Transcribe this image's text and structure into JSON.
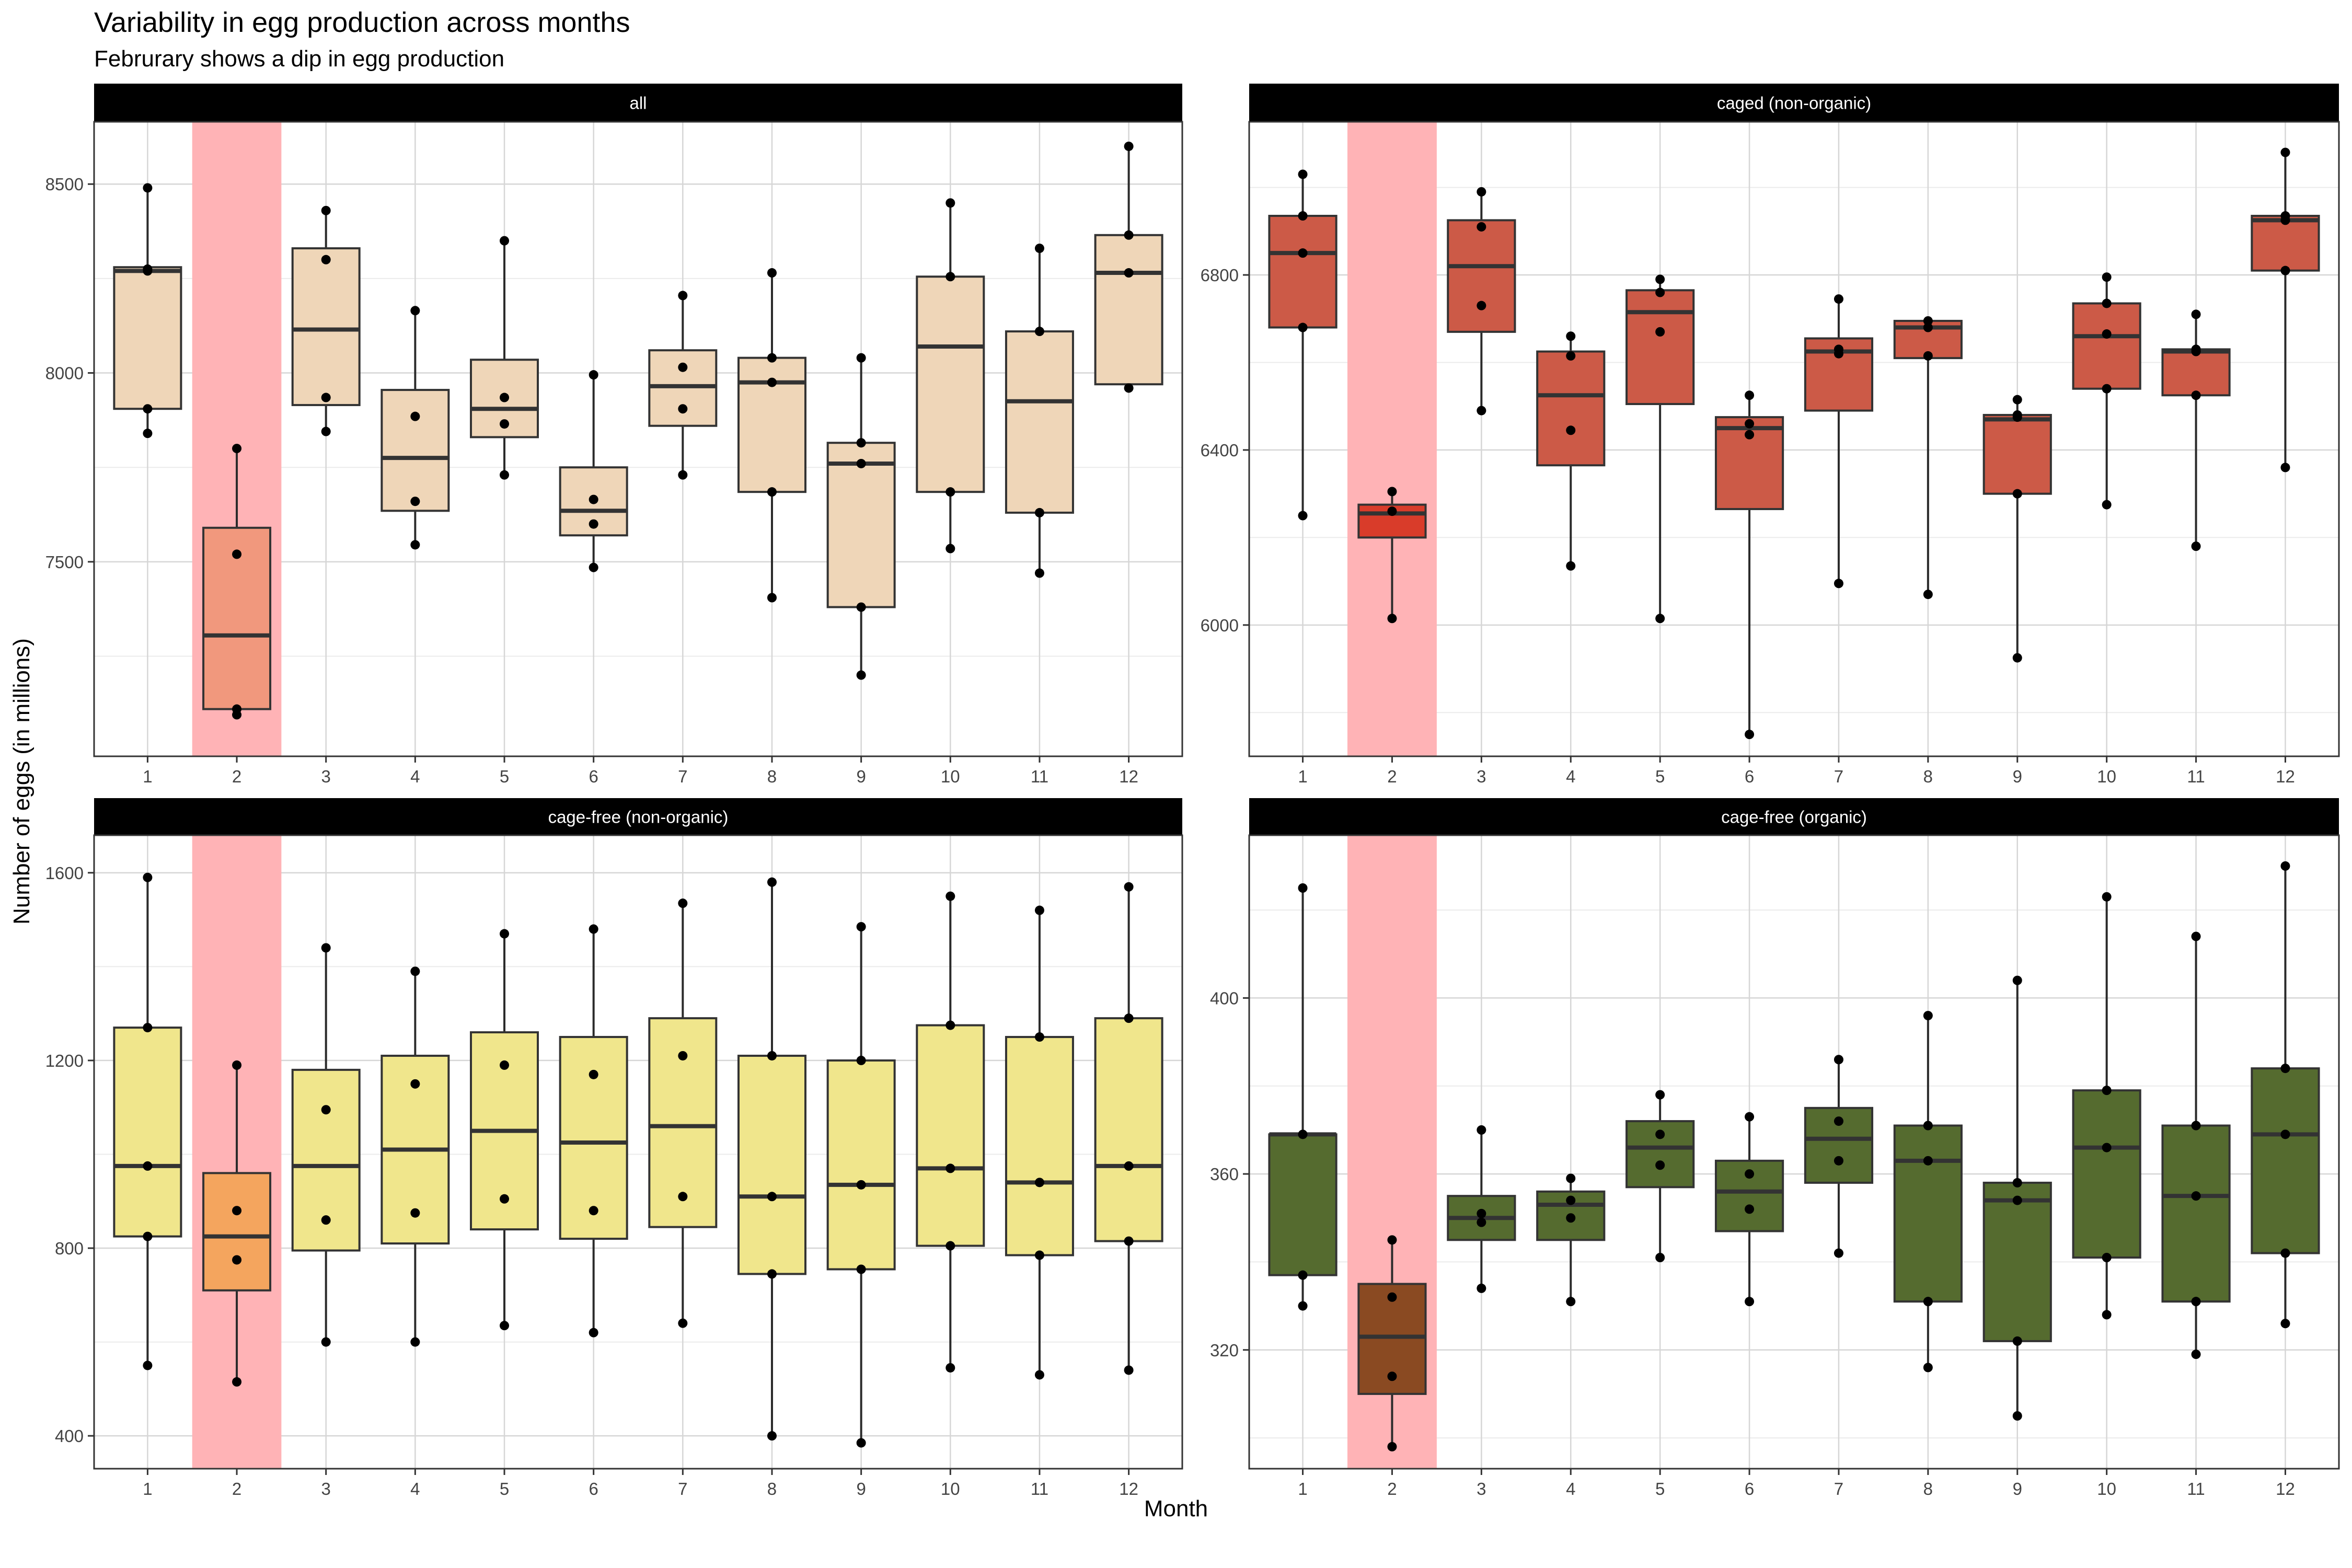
{
  "title": "Variability in egg production across months",
  "subtitle": "Februrary shows a dip in egg production",
  "xlabel": "Month",
  "ylabel": "Number of eggs (in millions)",
  "colors": {
    "highlight_band": "#ffb3b6",
    "strip_bg": "#000000",
    "strip_text": "#ffffff"
  },
  "chart_data": [
    {
      "type": "box",
      "facet": "all",
      "fill": "#efd6b8",
      "highlight_fill": "#f1987d",
      "highlight_month": 2,
      "categories": [
        "1",
        "2",
        "3",
        "4",
        "5",
        "6",
        "7",
        "8",
        "9",
        "10",
        "11",
        "12"
      ],
      "ylim": [
        6985,
        8665
      ],
      "yticks": [
        7500,
        8000,
        8500
      ],
      "boxes": [
        {
          "min": 7840,
          "q1": 7905,
          "median": 8270,
          "q3": 8280,
          "max": 8490,
          "points": [
            7840,
            7905,
            8275,
            8270,
            8490
          ]
        },
        {
          "min": 7095,
          "q1": 7110,
          "median": 7305,
          "q3": 7590,
          "max": 7800,
          "points": [
            7095,
            7110,
            7520,
            7800
          ]
        },
        {
          "min": 7845,
          "q1": 7915,
          "median": 8115,
          "q3": 8330,
          "max": 8430,
          "points": [
            7845,
            7935,
            8300,
            8430
          ]
        },
        {
          "min": 7545,
          "q1": 7635,
          "median": 7775,
          "q3": 7955,
          "max": 8165,
          "points": [
            7545,
            7660,
            7885,
            8165
          ]
        },
        {
          "min": 7730,
          "q1": 7830,
          "median": 7905,
          "q3": 8035,
          "max": 8350,
          "points": [
            7730,
            7865,
            7935,
            8350
          ]
        },
        {
          "min": 7485,
          "q1": 7570,
          "median": 7635,
          "q3": 7750,
          "max": 7995,
          "points": [
            7485,
            7600,
            7665,
            7995
          ]
        },
        {
          "min": 7730,
          "q1": 7860,
          "median": 7965,
          "q3": 8060,
          "max": 8205,
          "points": [
            7730,
            7905,
            8015,
            8205
          ]
        },
        {
          "min": 7405,
          "q1": 7685,
          "median": 7975,
          "q3": 8040,
          "max": 8265,
          "points": [
            7405,
            7685,
            7975,
            8040,
            8265
          ]
        },
        {
          "min": 7200,
          "q1": 7380,
          "median": 7760,
          "q3": 7815,
          "max": 8040,
          "points": [
            7200,
            7380,
            7760,
            7815,
            8040
          ]
        },
        {
          "min": 7535,
          "q1": 7685,
          "median": 8070,
          "q3": 8255,
          "max": 8450,
          "points": [
            7535,
            7685,
            8255,
            8450
          ]
        },
        {
          "min": 7470,
          "q1": 7630,
          "median": 7925,
          "q3": 8110,
          "max": 8330,
          "points": [
            7470,
            7630,
            8110,
            8330
          ]
        },
        {
          "min": 7960,
          "q1": 7970,
          "median": 8265,
          "q3": 8365,
          "max": 8600,
          "points": [
            7960,
            8365,
            8265,
            8600
          ]
        }
      ]
    },
    {
      "type": "box",
      "facet": "caged (non-organic)",
      "fill": "#cc5a47",
      "highlight_fill": "#d93c2a",
      "highlight_month": 2,
      "categories": [
        "1",
        "2",
        "3",
        "4",
        "5",
        "6",
        "7",
        "8",
        "9",
        "10",
        "11",
        "12"
      ],
      "ylim": [
        5700,
        7150
      ],
      "yticks": [
        6000,
        6400,
        6800
      ],
      "boxes": [
        {
          "min": 6250,
          "q1": 6680,
          "median": 6850,
          "q3": 6935,
          "max": 7030,
          "points": [
            6250,
            6680,
            6850,
            6935,
            7030
          ]
        },
        {
          "min": 6015,
          "q1": 6200,
          "median": 6255,
          "q3": 6275,
          "max": 6305,
          "points": [
            6015,
            6260,
            6305
          ]
        },
        {
          "min": 6490,
          "q1": 6670,
          "median": 6820,
          "q3": 6925,
          "max": 6990,
          "points": [
            6490,
            6730,
            6910,
            6990
          ]
        },
        {
          "min": 6135,
          "q1": 6365,
          "median": 6525,
          "q3": 6625,
          "max": 6660,
          "points": [
            6135,
            6445,
            6615,
            6660
          ]
        },
        {
          "min": 6015,
          "q1": 6505,
          "median": 6715,
          "q3": 6765,
          "max": 6790,
          "points": [
            6015,
            6670,
            6760,
            6790
          ]
        },
        {
          "min": 5750,
          "q1": 6265,
          "median": 6450,
          "q3": 6475,
          "max": 6525,
          "points": [
            5750,
            6435,
            6460,
            6525
          ]
        },
        {
          "min": 6095,
          "q1": 6490,
          "median": 6625,
          "q3": 6655,
          "max": 6745,
          "points": [
            6095,
            6620,
            6630,
            6745
          ]
        },
        {
          "min": 6070,
          "q1": 6610,
          "median": 6680,
          "q3": 6695,
          "max": 6695,
          "points": [
            6070,
            6615,
            6680,
            6695
          ]
        },
        {
          "min": 5925,
          "q1": 6300,
          "median": 6470,
          "q3": 6480,
          "max": 6515,
          "points": [
            5925,
            6300,
            6475,
            6480,
            6515
          ]
        },
        {
          "min": 6275,
          "q1": 6540,
          "median": 6660,
          "q3": 6735,
          "max": 6795,
          "points": [
            6275,
            6540,
            6665,
            6735,
            6795
          ]
        },
        {
          "min": 6180,
          "q1": 6525,
          "median": 6625,
          "q3": 6630,
          "max": 6710,
          "points": [
            6180,
            6525,
            6625,
            6630,
            6710
          ]
        },
        {
          "min": 6360,
          "q1": 6810,
          "median": 6925,
          "q3": 6935,
          "max": 7080,
          "points": [
            6360,
            6810,
            6925,
            6935,
            7080
          ]
        }
      ]
    },
    {
      "type": "box",
      "facet": "cage-free (non-organic)",
      "fill": "#f0e68c",
      "highlight_fill": "#f4a55e",
      "highlight_month": 2,
      "categories": [
        "1",
        "2",
        "3",
        "4",
        "5",
        "6",
        "7",
        "8",
        "9",
        "10",
        "11",
        "12"
      ],
      "ylim": [
        330,
        1680
      ],
      "yticks": [
        400,
        800,
        1200,
        1600
      ],
      "boxes": [
        {
          "min": 550,
          "q1": 825,
          "median": 975,
          "q3": 1270,
          "max": 1590,
          "points": [
            550,
            825,
            975,
            1270,
            1590
          ]
        },
        {
          "min": 515,
          "q1": 710,
          "median": 825,
          "q3": 960,
          "max": 1190,
          "points": [
            515,
            775,
            880,
            1190
          ]
        },
        {
          "min": 600,
          "q1": 795,
          "median": 975,
          "q3": 1180,
          "max": 1440,
          "points": [
            600,
            860,
            1095,
            1440
          ]
        },
        {
          "min": 600,
          "q1": 810,
          "median": 1010,
          "q3": 1210,
          "max": 1390,
          "points": [
            600,
            875,
            1150,
            1390
          ]
        },
        {
          "min": 635,
          "q1": 840,
          "median": 1050,
          "q3": 1260,
          "max": 1470,
          "points": [
            635,
            905,
            1190,
            1470
          ]
        },
        {
          "min": 620,
          "q1": 820,
          "median": 1025,
          "q3": 1250,
          "max": 1480,
          "points": [
            620,
            880,
            1170,
            1480
          ]
        },
        {
          "min": 640,
          "q1": 845,
          "median": 1060,
          "q3": 1290,
          "max": 1535,
          "points": [
            640,
            910,
            1210,
            1535
          ]
        },
        {
          "min": 400,
          "q1": 745,
          "median": 910,
          "q3": 1210,
          "max": 1580,
          "points": [
            400,
            745,
            910,
            1210,
            1580
          ]
        },
        {
          "min": 385,
          "q1": 755,
          "median": 935,
          "q3": 1200,
          "max": 1485,
          "points": [
            385,
            755,
            935,
            1200,
            1485
          ]
        },
        {
          "min": 545,
          "q1": 805,
          "median": 970,
          "q3": 1275,
          "max": 1550,
          "points": [
            545,
            805,
            970,
            1275,
            1550
          ]
        },
        {
          "min": 530,
          "q1": 785,
          "median": 940,
          "q3": 1250,
          "max": 1520,
          "points": [
            530,
            785,
            940,
            1250,
            1520
          ]
        },
        {
          "min": 540,
          "q1": 815,
          "median": 975,
          "q3": 1290,
          "max": 1570,
          "points": [
            540,
            815,
            975,
            1290,
            1570
          ]
        }
      ]
    },
    {
      "type": "box",
      "facet": "cage-free (organic)",
      "fill": "#556b2f",
      "highlight_fill": "#8a4a22",
      "highlight_month": 2,
      "categories": [
        "1",
        "2",
        "3",
        "4",
        "5",
        "6",
        "7",
        "8",
        "9",
        "10",
        "11",
        "12"
      ],
      "ylim": [
        293,
        437
      ],
      "yticks": [
        320,
        360,
        400
      ],
      "boxes": [
        {
          "min": 330,
          "q1": 337,
          "median": 369,
          "q3": 369,
          "max": 425,
          "points": [
            330,
            337,
            369,
            425
          ]
        },
        {
          "min": 298,
          "q1": 310,
          "median": 323,
          "q3": 335,
          "max": 345,
          "points": [
            298,
            314,
            332,
            345
          ]
        },
        {
          "min": 334,
          "q1": 345,
          "median": 350,
          "q3": 355,
          "max": 370,
          "points": [
            334,
            349,
            351,
            370
          ]
        },
        {
          "min": 331,
          "q1": 345,
          "median": 353,
          "q3": 356,
          "max": 359,
          "points": [
            331,
            350,
            354,
            359
          ]
        },
        {
          "min": 341,
          "q1": 357,
          "median": 366,
          "q3": 372,
          "max": 378,
          "points": [
            341,
            362,
            369,
            378
          ]
        },
        {
          "min": 331,
          "q1": 347,
          "median": 356,
          "q3": 363,
          "max": 373,
          "points": [
            331,
            352,
            360,
            373
          ]
        },
        {
          "min": 342,
          "q1": 358,
          "median": 368,
          "q3": 375,
          "max": 386,
          "points": [
            342,
            363,
            372,
            386
          ]
        },
        {
          "min": 316,
          "q1": 331,
          "median": 363,
          "q3": 371,
          "max": 396,
          "points": [
            316,
            331,
            363,
            371,
            396
          ]
        },
        {
          "min": 305,
          "q1": 322,
          "median": 354,
          "q3": 358,
          "max": 404,
          "points": [
            305,
            322,
            354,
            358,
            404
          ]
        },
        {
          "min": 328,
          "q1": 341,
          "median": 366,
          "q3": 379,
          "max": 423,
          "points": [
            328,
            341,
            366,
            379,
            423
          ]
        },
        {
          "min": 319,
          "q1": 331,
          "median": 355,
          "q3": 371,
          "max": 414,
          "points": [
            319,
            331,
            355,
            371,
            414
          ]
        },
        {
          "min": 326,
          "q1": 342,
          "median": 369,
          "q3": 384,
          "max": 430,
          "points": [
            326,
            342,
            369,
            384,
            430
          ]
        }
      ]
    }
  ]
}
